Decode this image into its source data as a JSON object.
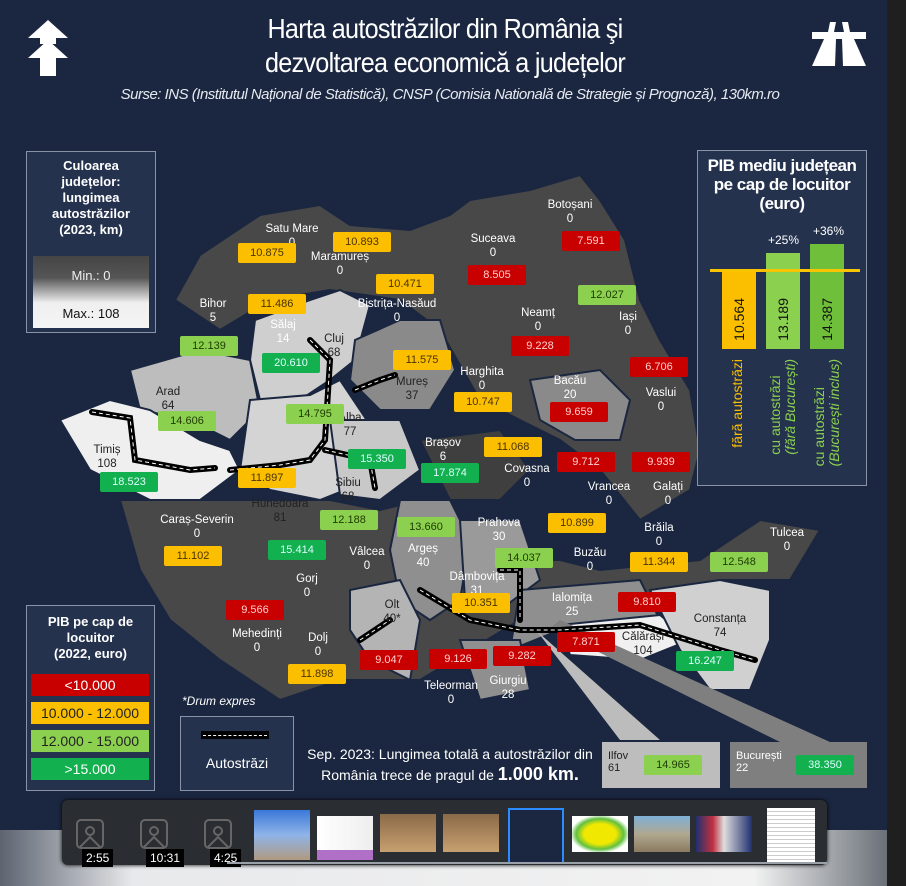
{
  "title": {
    "line1": "Harta autostrăzilor din România şi",
    "line2": "dezvoltarea economică a județelor"
  },
  "subtitle": "Surse: INS (Institutul Național de Statistică), CNSP (Comisia Natională de Strategie și Prognoză), 130km.ro",
  "icons": {
    "left": "double-arrow-up-icon",
    "right": "highway-icon"
  },
  "legend_length": {
    "heading": [
      "Culoarea",
      "județelor:",
      "lungimea",
      "autostrăzilor",
      "(2023, km)"
    ],
    "min": "Min.: 0",
    "max": "Max.: 108"
  },
  "legend_pib": {
    "heading": [
      "PIB pe cap de",
      "locuitor",
      "(2022, euro)"
    ],
    "ranges": [
      {
        "label": "<10.000",
        "color": "#c80000"
      },
      {
        "label": "10.000 - 12.000",
        "color": "#fbbf00"
      },
      {
        "label": "12.000 - 15.000",
        "color": "#8bd14f"
      },
      {
        "label": ">15.000",
        "color": "#13b04f"
      }
    ]
  },
  "legend_roads": {
    "note": "*Drum expres",
    "label": "Autostrăzi"
  },
  "chart_data": {
    "type": "bar",
    "title": "PIB mediu județean pe cap de locuitor (euro)",
    "categories": [
      "fără autostrăzi",
      "cu autostrăzi (fără București)",
      "cu autostrăzi (București inclus)"
    ],
    "values": [
      10564,
      13189,
      14387
    ],
    "value_labels": [
      "10.564",
      "13.189",
      "14.387"
    ],
    "annotations": [
      "",
      "+25%",
      "+36%"
    ],
    "colors": [
      "#fbbf00",
      "#8bd14f",
      "#6fbf3a"
    ]
  },
  "pib_chart": {
    "heading": [
      "PIB mediu județean",
      "pe cap de locuitor",
      "(euro)"
    ],
    "bars": [
      {
        "value": "10.564",
        "label1": "fără autostrăzi",
        "label2": "",
        "pct": ""
      },
      {
        "value": "13.189",
        "label1": "cu autostrăzi",
        "label2": "(fără București)",
        "pct": "+25%"
      },
      {
        "value": "14.387",
        "label1": "cu autostrăzi",
        "label2": "(București inclus)",
        "pct": "+36%"
      }
    ]
  },
  "counties": [
    {
      "name": "Satu Mare",
      "km": "0",
      "pib": "10.875",
      "cls": "yel"
    },
    {
      "name": "Maramureș",
      "km": "0",
      "pib": "10.893",
      "cls": "yel"
    },
    {
      "name": "Botoșani",
      "km": "0",
      "pib": "7.591",
      "cls": "red"
    },
    {
      "name": "Suceava",
      "km": "0",
      "pib": "8.505",
      "cls": "red"
    },
    {
      "name": "Bistrița-Nasăud",
      "km": "0",
      "pib": "10.471",
      "cls": "yel"
    },
    {
      "name": "Bihor",
      "km": "5",
      "pib": "12.139",
      "cls": "lgr"
    },
    {
      "name": "Sălaj",
      "km": "14",
      "pib": "11.486",
      "cls": "yel"
    },
    {
      "name": "Cluj",
      "km": "68",
      "pib": "20.610",
      "cls": "dgr"
    },
    {
      "name": "Iași",
      "km": "0",
      "pib": "12.027",
      "cls": "lgr"
    },
    {
      "name": "Neamț",
      "km": "0",
      "pib": "9.228",
      "cls": "red"
    },
    {
      "name": "Mureș",
      "km": "37",
      "pib": "11.575",
      "cls": "yel"
    },
    {
      "name": "Harghita",
      "km": "0",
      "pib": "10.747",
      "cls": "yel"
    },
    {
      "name": "Bacău",
      "km": "20",
      "pib": "9.659",
      "cls": "red"
    },
    {
      "name": "Vaslui",
      "km": "0",
      "pib": "6.706",
      "cls": "red"
    },
    {
      "name": "Arad",
      "km": "64",
      "pib": "14.606",
      "cls": "lgr"
    },
    {
      "name": "Alba",
      "km": "77",
      "pib": "14.795",
      "cls": "lgr"
    },
    {
      "name": "Timiș",
      "km": "108",
      "pib": "18.523",
      "cls": "dgr"
    },
    {
      "name": "Hunedoara",
      "km": "81",
      "pib": "11.897",
      "cls": "yel"
    },
    {
      "name": "Sibiu",
      "km": "68",
      "pib": "15.350",
      "cls": "dgr"
    },
    {
      "name": "Brașov",
      "km": "6",
      "pib": "17.874",
      "cls": "dgr"
    },
    {
      "name": "Covasna",
      "km": "0",
      "pib": "11.068",
      "cls": "yel"
    },
    {
      "name": "Vrancea",
      "km": "0",
      "pib": "9.712",
      "cls": "red"
    },
    {
      "name": "Galați",
      "km": "0",
      "pib": "9.939",
      "cls": "red"
    },
    {
      "name": "Caraș-Severin",
      "km": "0",
      "pib": "11.102",
      "cls": "yel"
    },
    {
      "name": "Vâlcea",
      "km": "0",
      "pib": "12.188",
      "cls": "lgr"
    },
    {
      "name": "Argeș",
      "km": "40",
      "pib": "13.660",
      "cls": "lgr"
    },
    {
      "name": "Prahova",
      "km": "30",
      "pib": "14.037",
      "cls": "lgr"
    },
    {
      "name": "Buzău",
      "km": "0",
      "pib": "10.899",
      "cls": "yel"
    },
    {
      "name": "Brăila",
      "km": "0",
      "pib": "11.344",
      "cls": "yel"
    },
    {
      "name": "Tulcea",
      "km": "0",
      "pib": "12.548",
      "cls": "lgr"
    },
    {
      "name": "Gorj",
      "km": "0",
      "pib": "15.414",
      "cls": "dgr"
    },
    {
      "name": "Mehedinți",
      "km": "0",
      "pib": "9.566",
      "cls": "red"
    },
    {
      "name": "Dolj",
      "km": "0",
      "pib": "11.898",
      "cls": "yel"
    },
    {
      "name": "Olt",
      "km": "40*",
      "pib": "9.047",
      "cls": "red"
    },
    {
      "name": "Dâmbovița",
      "km": "31",
      "pib": "10.351",
      "cls": "yel"
    },
    {
      "name": "Teleorman",
      "km": "0",
      "pib": "9.126",
      "cls": "red"
    },
    {
      "name": "Giurgiu",
      "km": "28",
      "pib": "9.282",
      "cls": "red"
    },
    {
      "name": "Ialomița",
      "km": "25",
      "pib": "9.810",
      "cls": "red"
    },
    {
      "name": "Călărași",
      "km": "104",
      "pib": "7.871",
      "cls": "red"
    },
    {
      "name": "Constanța",
      "km": "74",
      "pib": "16.247",
      "cls": "dgr"
    }
  ],
  "insets": [
    {
      "name": "Ilfov",
      "km": "61",
      "pib": "14.965",
      "cls": "lgr"
    },
    {
      "name": "București",
      "km": "22",
      "pib": "38.350",
      "cls": "dgr"
    }
  ],
  "note": {
    "text": "Sep. 2023: Lungimea totală a autostrăzilor din România trece de pragul de",
    "bold": "1.000 km."
  },
  "filmstrip": {
    "videos": [
      {
        "duration": "2:55"
      },
      {
        "duration": "10:31"
      },
      {
        "duration": "4:25"
      }
    ],
    "images": [
      "statue-photo",
      "bar-chart-image",
      "children-photo-1",
      "children-photo-2",
      "highway-map-infographic",
      "romania-yellow-map",
      "road-photo",
      "press-conference-photo",
      "document-page"
    ],
    "selected_index": 4
  }
}
